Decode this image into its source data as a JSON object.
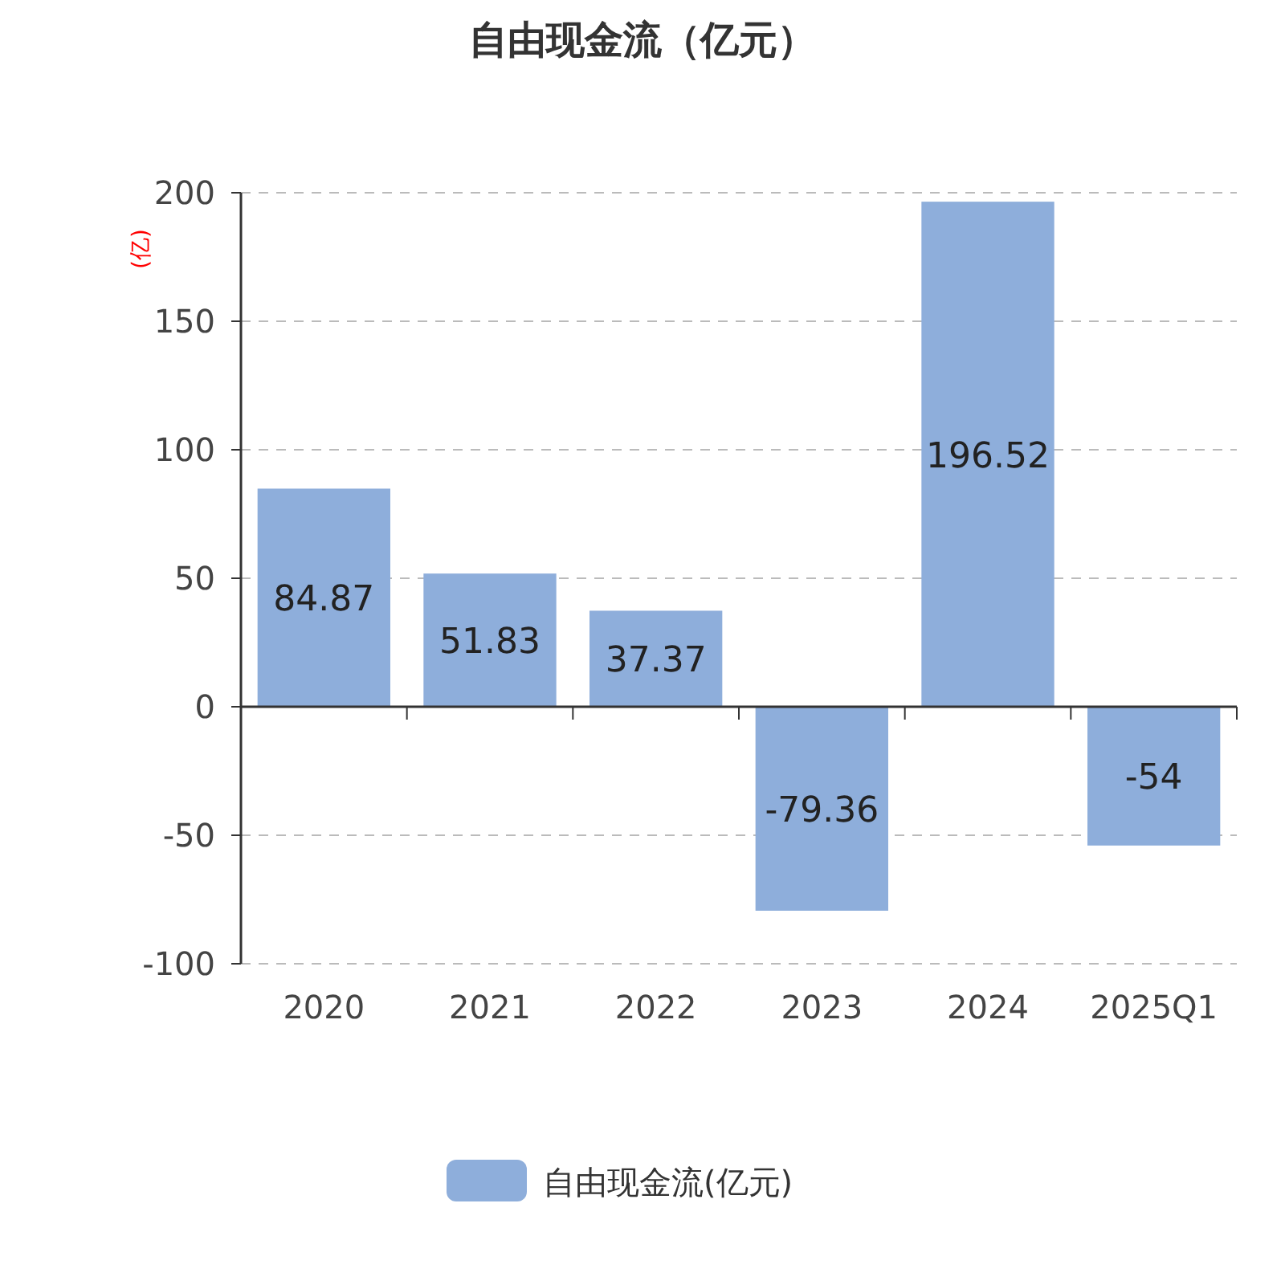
{
  "chart_data": {
    "type": "bar",
    "title": "自由现金流（亿元）",
    "ylabel": "(亿)",
    "categories": [
      "2020",
      "2021",
      "2022",
      "2023",
      "2024",
      "2025Q1"
    ],
    "series": [
      {
        "name": "自由现金流(亿元)",
        "color": "#8eaedb",
        "values": [
          84.87,
          51.83,
          37.37,
          -79.36,
          196.52,
          -54
        ]
      }
    ],
    "ylim": [
      -100,
      200
    ],
    "yticks": [
      -100,
      -50,
      0,
      50,
      100,
      150,
      200
    ],
    "grid": "y",
    "legend": "bottom",
    "data_labels": true
  }
}
